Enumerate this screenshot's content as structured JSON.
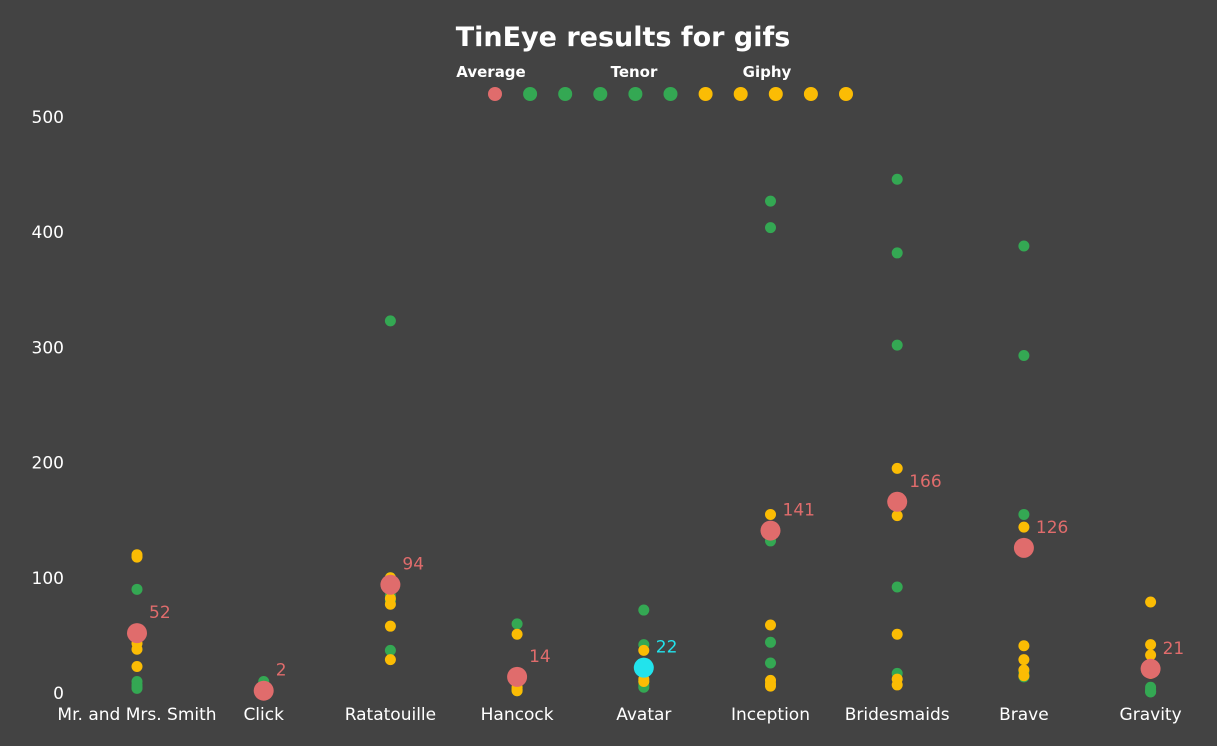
{
  "chart_data": {
    "type": "scatter",
    "title": "TinEye results for gifs",
    "xlabel": "",
    "ylabel": "",
    "ylim": [
      0,
      500
    ],
    "yticks": [
      0,
      100,
      200,
      300,
      400,
      500
    ],
    "grid": false,
    "legend": {
      "placement": "top-center",
      "entries": [
        {
          "label": "Average",
          "color": "#e06c6c",
          "dots": 1
        },
        {
          "label": "Tenor",
          "color": "#34a853",
          "dots": 5
        },
        {
          "label": "Giphy",
          "color": "#fbbc04",
          "dots": 5
        }
      ]
    },
    "categories": [
      "Mr. and Mrs. Smith",
      "Click",
      "Ratatouille",
      "Hancock",
      "Avatar",
      "Inception",
      "Bridesmaids",
      "Brave",
      "Gravity"
    ],
    "series": [
      {
        "name": "Tenor",
        "color": "#34a853",
        "values": [
          [
            90,
            10,
            7,
            5,
            4
          ],
          [
            10,
            5,
            3,
            2,
            1
          ],
          [
            323,
            100,
            37,
            85,
            80
          ],
          [
            60,
            8,
            5,
            3,
            2
          ],
          [
            72,
            42,
            10,
            7,
            5
          ],
          [
            427,
            404,
            132,
            44,
            26
          ],
          [
            446,
            382,
            302,
            92,
            17
          ],
          [
            388,
            293,
            155,
            18,
            14
          ],
          [
            5,
            3,
            2,
            1,
            1
          ]
        ]
      },
      {
        "name": "Giphy",
        "color": "#fbbc04",
        "values": [
          [
            120,
            118,
            43,
            38,
            23
          ],
          [
            4,
            2,
            1,
            1,
            0
          ],
          [
            100,
            82,
            77,
            58,
            29
          ],
          [
            51,
            9,
            5,
            3,
            2
          ],
          [
            37,
            23,
            17,
            12,
            10
          ],
          [
            155,
            59,
            11,
            8,
            6
          ],
          [
            195,
            154,
            51,
            12,
            7
          ],
          [
            144,
            41,
            29,
            20,
            15
          ],
          [
            79,
            42,
            33,
            20,
            17
          ]
        ]
      },
      {
        "name": "Average",
        "color": "#e06c6c",
        "values": [
          52,
          2,
          94,
          14,
          22,
          141,
          166,
          126,
          21
        ],
        "labels": [
          "52",
          "2",
          "94",
          "14",
          "22",
          "141",
          "166",
          "126",
          "21"
        ],
        "highlight_index": 4,
        "highlight_color": "#22e3ec"
      }
    ]
  }
}
